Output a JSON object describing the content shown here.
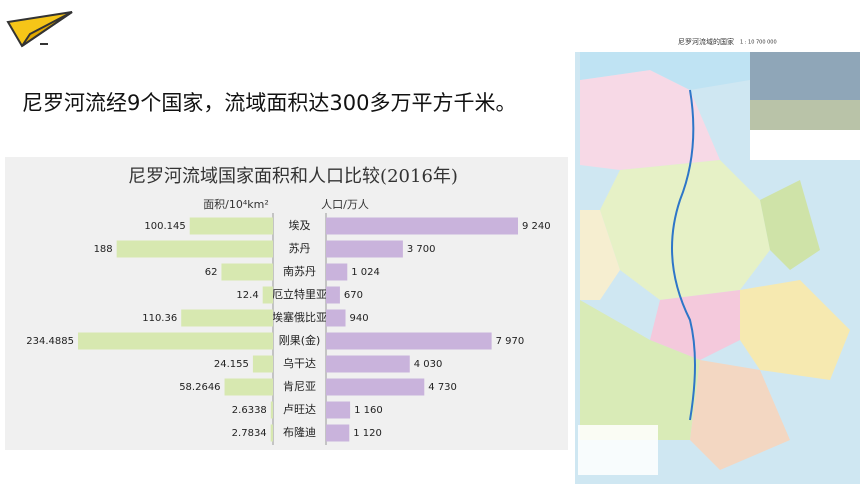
{
  "slide": {
    "heading": "尼罗河流经9个国家，流域面积达300多万平方千米。"
  },
  "map": {
    "title": "尼罗河流域的国家",
    "scale": "1 : 10 700 000"
  },
  "chart_data": {
    "type": "butterfly-bar",
    "title": "尼罗河流域国家面积和人口比较(2016年)",
    "categories": [
      "埃及",
      "苏丹",
      "南苏丹",
      "厄立特里亚",
      "埃塞俄比亚",
      "刚果(金)",
      "乌干达",
      "肯尼亚",
      "卢旺达",
      "布隆迪"
    ],
    "series": [
      {
        "name": "面积/10⁴km²",
        "color": "#d7e8b0",
        "values": [
          100.145,
          188,
          62,
          12.4,
          110.36,
          234.4885,
          24.155,
          58.2646,
          2.6338,
          2.7834
        ]
      },
      {
        "name": "人口/万人",
        "color": "#c9b3dc",
        "values": [
          9240,
          3700,
          1024,
          670,
          940,
          7970,
          4030,
          4730,
          1160,
          1120
        ],
        "value_labels": [
          "9 240",
          "3 700",
          "1 024",
          "670",
          "940",
          "7 970",
          "4 030",
          "4 730",
          "1 160",
          "1 120"
        ]
      }
    ]
  }
}
